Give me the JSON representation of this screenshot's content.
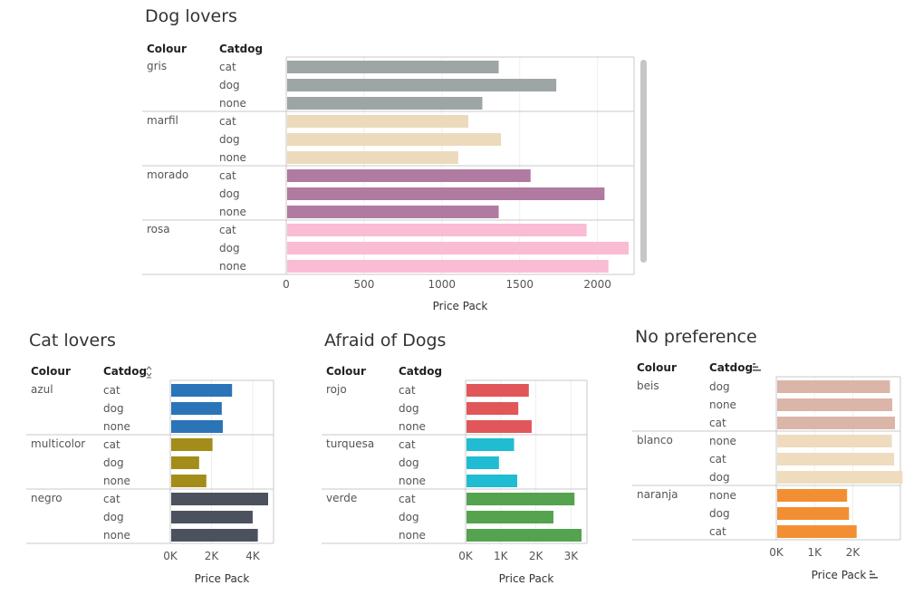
{
  "charts": [
    {
      "title": "Dog lovers",
      "col_header": "Colour",
      "cat_header": "Catdog",
      "xlabel": "Price Pack",
      "header_sort_icon": "",
      "xlabel_sort_icon": "",
      "scrollbar": true
    },
    {
      "title": "Cat lovers",
      "col_header": "Colour",
      "cat_header": "Catdog",
      "xlabel": "Price Pack",
      "header_sort_icon": "sort-alpha-icon",
      "xlabel_sort_icon": "",
      "scrollbar": false
    },
    {
      "title": "Afraid of Dogs",
      "col_header": "Colour",
      "cat_header": "Catdog",
      "xlabel": "Price Pack",
      "header_sort_icon": "",
      "xlabel_sort_icon": "",
      "scrollbar": false
    },
    {
      "title": "No preference",
      "col_header": "Colour",
      "cat_header": "Catdog",
      "xlabel": "Price Pack",
      "header_sort_icon": "sort-bars-icon",
      "xlabel_sort_icon": "sort-bars-icon",
      "scrollbar": false
    }
  ],
  "chart_data": [
    {
      "type": "bar",
      "orientation": "horizontal",
      "title": "Dog lovers",
      "xlabel": "Price Pack",
      "xlim": [
        0,
        2200
      ],
      "ticks": [
        0,
        500,
        1000,
        1500,
        2000
      ],
      "tick_labels": [
        "0",
        "500",
        "1000",
        "1500",
        "2000"
      ],
      "grid": true,
      "groups": [
        {
          "colour": "gris",
          "color": "#9da5a5",
          "rows": [
            {
              "catdog": "cat",
              "value": 1365
            },
            {
              "catdog": "dog",
              "value": 1735
            },
            {
              "catdog": "none",
              "value": 1260
            }
          ]
        },
        {
          "colour": "marfil",
          "color": "#ecdabd",
          "rows": [
            {
              "catdog": "cat",
              "value": 1170
            },
            {
              "catdog": "dog",
              "value": 1380
            },
            {
              "catdog": "none",
              "value": 1105
            }
          ]
        },
        {
          "colour": "morado",
          "color": "#b07aa1",
          "rows": [
            {
              "catdog": "cat",
              "value": 1570
            },
            {
              "catdog": "dog",
              "value": 2045
            },
            {
              "catdog": "none",
              "value": 1365
            }
          ]
        },
        {
          "colour": "rosa",
          "color": "#f9bcd4",
          "rows": [
            {
              "catdog": "cat",
              "value": 1930
            },
            {
              "catdog": "dog",
              "value": 2200
            },
            {
              "catdog": "none",
              "value": 2070
            }
          ]
        }
      ]
    },
    {
      "type": "bar",
      "orientation": "horizontal",
      "title": "Cat lovers",
      "xlabel": "Price Pack",
      "xlim": [
        0,
        4750
      ],
      "ticks": [
        0,
        2000,
        4000
      ],
      "tick_labels": [
        "0K",
        "2K",
        "4K"
      ],
      "grid": true,
      "groups": [
        {
          "colour": "azul",
          "color": "#2b74b8",
          "rows": [
            {
              "catdog": "cat",
              "value": 3000
            },
            {
              "catdog": "dog",
              "value": 2500
            },
            {
              "catdog": "none",
              "value": 2550
            }
          ]
        },
        {
          "colour": "multicolor",
          "color": "#a38c1a",
          "rows": [
            {
              "catdog": "cat",
              "value": 2050
            },
            {
              "catdog": "dog",
              "value": 1400
            },
            {
              "catdog": "none",
              "value": 1750
            }
          ]
        },
        {
          "colour": "negro",
          "color": "#4b525e",
          "rows": [
            {
              "catdog": "cat",
              "value": 4750
            },
            {
              "catdog": "dog",
              "value": 4000
            },
            {
              "catdog": "none",
              "value": 4250
            }
          ]
        }
      ]
    },
    {
      "type": "bar",
      "orientation": "horizontal",
      "title": "Afraid of Dogs",
      "xlabel": "Price Pack",
      "xlim": [
        0,
        3300
      ],
      "ticks": [
        0,
        1000,
        2000,
        3000
      ],
      "tick_labels": [
        "0K",
        "1K",
        "2K",
        "3K"
      ],
      "grid": true,
      "groups": [
        {
          "colour": "rojo",
          "color": "#e05659",
          "rows": [
            {
              "catdog": "cat",
              "value": 1800
            },
            {
              "catdog": "dog",
              "value": 1500
            },
            {
              "catdog": "none",
              "value": 1880
            }
          ]
        },
        {
          "colour": "turquesa",
          "color": "#1fbcd2",
          "rows": [
            {
              "catdog": "cat",
              "value": 1380
            },
            {
              "catdog": "dog",
              "value": 950
            },
            {
              "catdog": "none",
              "value": 1470
            }
          ]
        },
        {
          "colour": "verde",
          "color": "#55a24f",
          "rows": [
            {
              "catdog": "cat",
              "value": 3100
            },
            {
              "catdog": "dog",
              "value": 2500
            },
            {
              "catdog": "none",
              "value": 3300
            }
          ]
        }
      ]
    },
    {
      "type": "bar",
      "orientation": "horizontal",
      "title": "No preference",
      "xlabel": "Price Pack",
      "xlim": [
        0,
        3100
      ],
      "ticks": [
        0,
        1000,
        2000
      ],
      "tick_labels": [
        "0K",
        "1K",
        "2K"
      ],
      "grid": true,
      "groups": [
        {
          "colour": "beis",
          "color": "#dbb5a7",
          "rows": [
            {
              "catdog": "dog",
              "value": 2970
            },
            {
              "catdog": "none",
              "value": 3030
            },
            {
              "catdog": "cat",
              "value": 3100
            }
          ]
        },
        {
          "colour": "blanco",
          "color": "#efdcbf",
          "rows": [
            {
              "catdog": "none",
              "value": 3020
            },
            {
              "catdog": "cat",
              "value": 3080
            },
            {
              "catdog": "dog",
              "value": 3300
            }
          ]
        },
        {
          "colour": "naranja",
          "color": "#f28f32",
          "rows": [
            {
              "catdog": "none",
              "value": 1850
            },
            {
              "catdog": "dog",
              "value": 1900
            },
            {
              "catdog": "cat",
              "value": 2100
            }
          ]
        }
      ]
    }
  ]
}
